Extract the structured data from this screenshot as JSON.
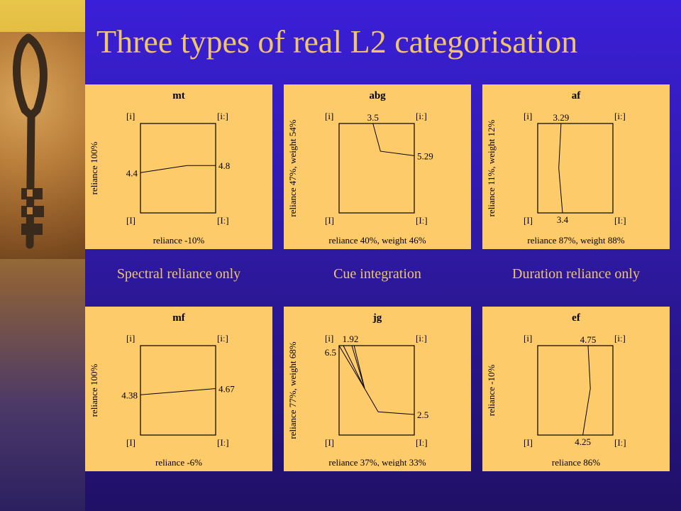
{
  "title": "Three types of real L2 categorisation",
  "colors": {
    "background": "#3a1fd8",
    "title": "#f0c46a",
    "panel": "#fecb6a"
  },
  "captions": [
    "Spectral reliance only",
    "Cue integration",
    "Duration reliance only"
  ],
  "corner_labels": {
    "top_left": "[i]",
    "top_right": "[iː]",
    "bottom_left": "[I]",
    "bottom_right": "[Iː]"
  },
  "panels": [
    {
      "name": "mt",
      "left_label": "reliance 100%",
      "bottom_label": "reliance -10%",
      "line": [
        [
          0,
          0.55,
          "4.4",
          "left"
        ],
        [
          0.62,
          0.47,
          ""
        ],
        [
          1,
          0.47,
          "4.8",
          "right"
        ]
      ]
    },
    {
      "name": "abg",
      "left_label": "reliance 47%, weight 54%",
      "bottom_label": "reliance 40%, weight 46%",
      "line": [
        [
          0.45,
          0,
          "3.5",
          "top"
        ],
        [
          0.55,
          0.31,
          ""
        ],
        [
          1,
          0.36,
          "5.29",
          "right"
        ]
      ]
    },
    {
      "name": "af",
      "left_label": "reliance 11%, weight 12%",
      "bottom_label": "reliance 87%, weight 88%",
      "line": [
        [
          0.31,
          0,
          "3.29",
          "top"
        ],
        [
          0.28,
          0.5,
          ""
        ],
        [
          0.33,
          1,
          "3.4",
          "bottom"
        ]
      ]
    },
    {
      "name": "mf",
      "left_label": "reliance 100%",
      "bottom_label": "reliance -6%",
      "line": [
        [
          0,
          0.55,
          "4.38",
          "left"
        ],
        [
          1,
          0.48,
          "4.67",
          "right"
        ]
      ]
    },
    {
      "name": "jg",
      "left_label": "reliance 77%, weight 68%",
      "bottom_label": "reliance 37%, weight 33%",
      "line": [
        [
          0.2,
          0,
          "1.92",
          "top"
        ],
        [
          0.05,
          0,
          "6.5",
          "left"
        ],
        [
          0.34,
          0.48,
          ""
        ],
        [
          0.52,
          0.74,
          ""
        ],
        [
          1,
          0.77,
          "2.5",
          "right"
        ]
      ]
    },
    {
      "name": "ef",
      "left_label": "reliance -10%",
      "bottom_label": "reliance 86%",
      "line": [
        [
          0.67,
          0,
          "4.75",
          "top"
        ],
        [
          0.7,
          0.48,
          ""
        ],
        [
          0.6,
          1,
          "4.25",
          "bottom"
        ]
      ]
    }
  ]
}
